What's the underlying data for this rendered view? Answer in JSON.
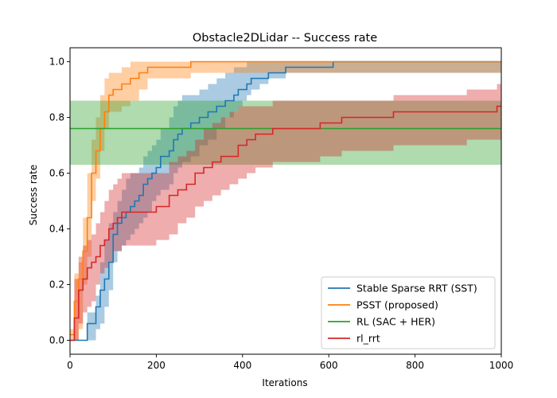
{
  "chart_data": {
    "type": "line",
    "title": "Obstacle2DLidar -- Success rate",
    "xlabel": "Iterations",
    "ylabel": "Success rate",
    "xlim": [
      0,
      1000
    ],
    "ylim": [
      -0.05,
      1.05
    ],
    "xticks": [
      0,
      200,
      400,
      600,
      800,
      1000
    ],
    "yticks": [
      0.0,
      0.2,
      0.4,
      0.6,
      0.8,
      1.0
    ],
    "xtick_labels": [
      "0",
      "200",
      "400",
      "600",
      "800",
      "1000"
    ],
    "ytick_labels": [
      "0.0",
      "0.2",
      "0.4",
      "0.6",
      "0.8",
      "1.0"
    ],
    "grid": false,
    "legend_position": "lower-right",
    "series": [
      {
        "name": "Stable Sparse RRT (SST)",
        "color": "#1f77b4",
        "style": "step",
        "x": [
          0,
          40,
          60,
          70,
          80,
          90,
          100,
          110,
          120,
          130,
          140,
          150,
          160,
          170,
          180,
          190,
          200,
          210,
          230,
          240,
          250,
          260,
          280,
          300,
          320,
          340,
          360,
          380,
          390,
          400,
          410,
          420,
          440,
          460,
          480,
          500,
          520,
          540,
          610,
          1000
        ],
        "values": [
          0.0,
          0.06,
          0.12,
          0.18,
          0.22,
          0.28,
          0.38,
          0.42,
          0.44,
          0.46,
          0.48,
          0.5,
          0.52,
          0.56,
          0.58,
          0.6,
          0.62,
          0.66,
          0.68,
          0.72,
          0.74,
          0.76,
          0.78,
          0.8,
          0.82,
          0.84,
          0.86,
          0.88,
          0.9,
          0.9,
          0.92,
          0.94,
          0.94,
          0.96,
          0.96,
          0.98,
          0.98,
          0.98,
          1.0,
          1.0
        ],
        "lower": [
          0.0,
          0.0,
          0.04,
          0.06,
          0.12,
          0.18,
          0.28,
          0.32,
          0.34,
          0.36,
          0.38,
          0.4,
          0.42,
          0.44,
          0.46,
          0.5,
          0.52,
          0.54,
          0.56,
          0.6,
          0.62,
          0.64,
          0.66,
          0.7,
          0.72,
          0.76,
          0.8,
          0.82,
          0.84,
          0.86,
          0.88,
          0.9,
          0.92,
          0.94,
          0.94,
          0.96,
          0.96,
          0.96,
          0.96,
          0.96
        ],
        "upper": [
          0.0,
          0.1,
          0.16,
          0.28,
          0.36,
          0.42,
          0.46,
          0.5,
          0.54,
          0.58,
          0.6,
          0.6,
          0.62,
          0.66,
          0.68,
          0.7,
          0.72,
          0.76,
          0.8,
          0.84,
          0.86,
          0.88,
          0.88,
          0.9,
          0.92,
          0.94,
          0.96,
          0.98,
          0.98,
          0.98,
          1.0,
          1.0,
          1.0,
          1.0,
          1.0,
          1.0,
          1.0,
          1.0,
          1.0,
          1.0
        ]
      },
      {
        "name": "PSST (proposed)",
        "color": "#ff7f0e",
        "style": "step",
        "x": [
          0,
          10,
          20,
          30,
          40,
          50,
          60,
          70,
          80,
          90,
          100,
          120,
          140,
          160,
          180,
          200,
          220,
          240,
          260,
          280,
          1000
        ],
        "values": [
          0.02,
          0.14,
          0.22,
          0.32,
          0.44,
          0.6,
          0.68,
          0.76,
          0.82,
          0.88,
          0.9,
          0.92,
          0.94,
          0.96,
          0.98,
          0.98,
          0.98,
          0.98,
          0.98,
          1.0,
          1.0
        ],
        "lower": [
          0.0,
          0.0,
          0.04,
          0.2,
          0.3,
          0.5,
          0.58,
          0.68,
          0.76,
          0.82,
          0.82,
          0.84,
          0.86,
          0.9,
          0.94,
          0.94,
          0.94,
          0.94,
          0.94,
          0.96,
          0.96
        ],
        "upper": [
          0.04,
          0.24,
          0.28,
          0.44,
          0.6,
          0.72,
          0.8,
          0.88,
          0.94,
          0.96,
          0.96,
          0.98,
          1.0,
          1.0,
          1.0,
          1.0,
          1.0,
          1.0,
          1.0,
          1.0,
          1.0
        ]
      },
      {
        "name": "RL (SAC + HER)",
        "color": "#2ca02c",
        "style": "constant",
        "x": [
          0,
          1000
        ],
        "values": [
          0.76,
          0.76
        ],
        "lower": [
          0.63,
          0.63
        ],
        "upper": [
          0.86,
          0.86
        ]
      },
      {
        "name": "rl_rrt",
        "color": "#d62728",
        "style": "step",
        "x": [
          0,
          10,
          20,
          30,
          40,
          50,
          60,
          70,
          80,
          90,
          100,
          110,
          120,
          140,
          160,
          180,
          200,
          210,
          230,
          250,
          270,
          290,
          310,
          330,
          350,
          370,
          390,
          410,
          430,
          470,
          500,
          580,
          630,
          750,
          920,
          990,
          1000
        ],
        "values": [
          0.0,
          0.08,
          0.18,
          0.22,
          0.26,
          0.28,
          0.3,
          0.34,
          0.36,
          0.4,
          0.42,
          0.44,
          0.46,
          0.46,
          0.46,
          0.46,
          0.48,
          0.48,
          0.52,
          0.54,
          0.56,
          0.6,
          0.62,
          0.64,
          0.66,
          0.66,
          0.7,
          0.72,
          0.74,
          0.76,
          0.76,
          0.78,
          0.8,
          0.82,
          0.82,
          0.84,
          0.84
        ],
        "lower": [
          0.0,
          0.0,
          0.06,
          0.1,
          0.12,
          0.14,
          0.2,
          0.24,
          0.26,
          0.28,
          0.32,
          0.32,
          0.34,
          0.34,
          0.34,
          0.34,
          0.36,
          0.36,
          0.38,
          0.42,
          0.44,
          0.48,
          0.5,
          0.52,
          0.54,
          0.56,
          0.58,
          0.6,
          0.62,
          0.64,
          0.64,
          0.66,
          0.68,
          0.7,
          0.72,
          0.72,
          0.72
        ],
        "upper": [
          0.0,
          0.22,
          0.3,
          0.34,
          0.36,
          0.38,
          0.42,
          0.46,
          0.5,
          0.54,
          0.56,
          0.58,
          0.6,
          0.6,
          0.6,
          0.6,
          0.6,
          0.6,
          0.64,
          0.66,
          0.68,
          0.72,
          0.76,
          0.78,
          0.8,
          0.82,
          0.84,
          0.84,
          0.84,
          0.86,
          0.86,
          0.86,
          0.86,
          0.88,
          0.9,
          0.92,
          0.92
        ]
      }
    ]
  }
}
